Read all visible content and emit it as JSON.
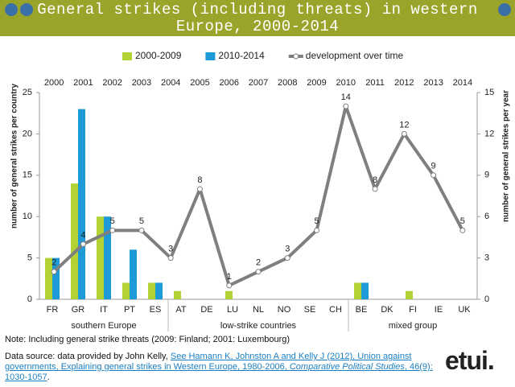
{
  "title_lines": [
    "General strikes (including threats) in western",
    "Europe, 2000-2014"
  ],
  "chart_data": {
    "type": "bar",
    "categories": [
      "FR",
      "GR",
      "IT",
      "PT",
      "ES",
      "AT",
      "DE",
      "LU",
      "NL",
      "NO",
      "SE",
      "CH",
      "BE",
      "DK",
      "FI",
      "IE",
      "UK"
    ],
    "groups": [
      {
        "name": "southern Europe",
        "count": 5
      },
      {
        "name": "low-strike countries",
        "count": 7
      },
      {
        "name": "mixed group",
        "count": 5
      }
    ],
    "x": [
      "2000",
      "2001",
      "2002",
      "2003",
      "2004",
      "2005",
      "2006",
      "2007",
      "2008",
      "2009",
      "2010",
      "2011",
      "2012",
      "2013",
      "2014"
    ],
    "series": [
      {
        "name": "2000-2009",
        "color": "#b3d334",
        "values": [
          5,
          14,
          10,
          2,
          2,
          1,
          0,
          1,
          0,
          0,
          0,
          0,
          2,
          0,
          1,
          0,
          0
        ]
      },
      {
        "name": "2010-2014",
        "color": "#1e9ad6",
        "values": [
          5,
          23,
          10,
          6,
          2,
          0,
          0,
          0,
          0,
          0,
          0,
          0,
          2,
          0,
          0,
          0,
          0
        ]
      },
      {
        "name": "development over time",
        "color": "#7f7f7f",
        "axis": "y2",
        "type": "line",
        "values": [
          2,
          4,
          5,
          5,
          3,
          8,
          1,
          2,
          3,
          5,
          14,
          8,
          12,
          9,
          5
        ]
      }
    ],
    "ylabel": "number of general strikes per country",
    "y2label": "number of general strikes per year",
    "ylim": [
      0,
      25
    ],
    "yticks": [
      0,
      5,
      10,
      15,
      20,
      25
    ],
    "y2lim": [
      0,
      15
    ],
    "y2ticks": [
      0,
      3,
      6,
      9,
      12,
      15
    ],
    "legend": "top"
  },
  "note": "Note: Including general strike threats (2009: Finland; 2001: Luxembourg)",
  "source": {
    "prefix": "Data source: data provided by John Kelly, ",
    "link": "See Hamann K, Johnston A and Kelly J (2012), Union against governments, Explaining general strikes in Western Europe, 1980-2006, ",
    "journal": "Comparative Political Studies",
    "tail": ", 46(9): 1030-1057",
    "end": "."
  },
  "logo": "etui."
}
